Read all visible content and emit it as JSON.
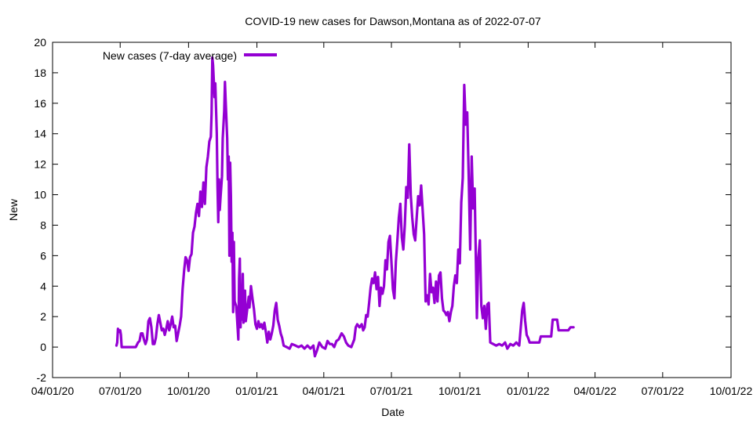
{
  "chart_data": {
    "type": "line",
    "title": "COVID-19 new cases for Dawson,Montana as of 2022-07-07",
    "xlabel": "Date",
    "ylabel": "New",
    "ylim": [
      -2,
      20
    ],
    "xlim": [
      "2020-04-01",
      "2022-10-01"
    ],
    "yticks": [
      -2,
      0,
      2,
      4,
      6,
      8,
      10,
      12,
      14,
      16,
      18,
      20
    ],
    "xticks": [
      {
        "date": "2020-04-01",
        "label": "04/01/20"
      },
      {
        "date": "2020-07-01",
        "label": "07/01/20"
      },
      {
        "date": "2020-10-01",
        "label": "10/01/20"
      },
      {
        "date": "2021-01-01",
        "label": "01/01/21"
      },
      {
        "date": "2021-04-01",
        "label": "04/01/21"
      },
      {
        "date": "2021-07-01",
        "label": "07/01/21"
      },
      {
        "date": "2021-10-01",
        "label": "10/01/21"
      },
      {
        "date": "2022-01-01",
        "label": "01/01/22"
      },
      {
        "date": "2022-04-01",
        "label": "04/01/22"
      },
      {
        "date": "2022-07-01",
        "label": "07/01/22"
      },
      {
        "date": "2022-10-01",
        "label": "10/01/22"
      }
    ],
    "grid": false,
    "legend_position": "top-left",
    "series": [
      {
        "name": "New cases (7-day average)",
        "color": "#9400d3",
        "points": [
          [
            "2020-06-26",
            0.1
          ],
          [
            "2020-06-27",
            0.3
          ],
          [
            "2020-06-28",
            1.2
          ],
          [
            "2020-06-30",
            1.0
          ],
          [
            "2020-07-01",
            1.1
          ],
          [
            "2020-07-02",
            0.8
          ],
          [
            "2020-07-03",
            0.0
          ],
          [
            "2020-07-05",
            0.0
          ],
          [
            "2020-07-15",
            0.0
          ],
          [
            "2020-07-22",
            0.0
          ],
          [
            "2020-07-25",
            0.3
          ],
          [
            "2020-07-27",
            0.4
          ],
          [
            "2020-07-29",
            0.9
          ],
          [
            "2020-07-31",
            0.9
          ],
          [
            "2020-08-02",
            0.5
          ],
          [
            "2020-08-04",
            0.2
          ],
          [
            "2020-08-06",
            0.5
          ],
          [
            "2020-08-08",
            1.7
          ],
          [
            "2020-08-10",
            1.9
          ],
          [
            "2020-08-12",
            1.3
          ],
          [
            "2020-08-14",
            0.2
          ],
          [
            "2020-08-16",
            0.2
          ],
          [
            "2020-08-18",
            0.6
          ],
          [
            "2020-08-20",
            1.5
          ],
          [
            "2020-08-22",
            2.1
          ],
          [
            "2020-08-24",
            1.6
          ],
          [
            "2020-08-26",
            1.1
          ],
          [
            "2020-08-28",
            1.2
          ],
          [
            "2020-08-30",
            0.8
          ],
          [
            "2020-09-01",
            1.2
          ],
          [
            "2020-09-03",
            1.7
          ],
          [
            "2020-09-05",
            1.1
          ],
          [
            "2020-09-07",
            1.5
          ],
          [
            "2020-09-09",
            2.0
          ],
          [
            "2020-09-11",
            1.3
          ],
          [
            "2020-09-13",
            1.4
          ],
          [
            "2020-09-15",
            0.4
          ],
          [
            "2020-09-17",
            0.9
          ],
          [
            "2020-09-19",
            1.4
          ],
          [
            "2020-09-21",
            2.0
          ],
          [
            "2020-09-23",
            3.8
          ],
          [
            "2020-09-25",
            5.0
          ],
          [
            "2020-09-27",
            5.9
          ],
          [
            "2020-09-29",
            5.7
          ],
          [
            "2020-10-01",
            5.0
          ],
          [
            "2020-10-03",
            5.9
          ],
          [
            "2020-10-05",
            6.1
          ],
          [
            "2020-10-07",
            7.5
          ],
          [
            "2020-10-09",
            7.9
          ],
          [
            "2020-10-11",
            8.8
          ],
          [
            "2020-10-13",
            9.4
          ],
          [
            "2020-10-15",
            8.6
          ],
          [
            "2020-10-17",
            10.2
          ],
          [
            "2020-10-19",
            9.2
          ],
          [
            "2020-10-21",
            10.8
          ],
          [
            "2020-10-23",
            9.4
          ],
          [
            "2020-10-25",
            11.8
          ],
          [
            "2020-10-27",
            12.5
          ],
          [
            "2020-10-29",
            13.5
          ],
          [
            "2020-10-31",
            13.8
          ],
          [
            "2020-11-01",
            15.3
          ],
          [
            "2020-11-02",
            19.0
          ],
          [
            "2020-11-03",
            18.5
          ],
          [
            "2020-11-05",
            16.4
          ],
          [
            "2020-11-06",
            17.3
          ],
          [
            "2020-11-08",
            14.0
          ],
          [
            "2020-11-09",
            10.5
          ],
          [
            "2020-11-10",
            8.2
          ],
          [
            "2020-11-11",
            11.0
          ],
          [
            "2020-11-12",
            9.0
          ],
          [
            "2020-11-13",
            9.8
          ],
          [
            "2020-11-15",
            11.2
          ],
          [
            "2020-11-16",
            13.7
          ],
          [
            "2020-11-18",
            15.5
          ],
          [
            "2020-11-19",
            17.4
          ],
          [
            "2020-11-20",
            16.1
          ],
          [
            "2020-11-22",
            13.7
          ],
          [
            "2020-11-23",
            11.0
          ],
          [
            "2020-11-24",
            12.5
          ],
          [
            "2020-11-25",
            6.0
          ],
          [
            "2020-11-26",
            12.1
          ],
          [
            "2020-11-27",
            9.9
          ],
          [
            "2020-11-28",
            5.6
          ],
          [
            "2020-11-29",
            7.5
          ],
          [
            "2020-11-30",
            2.3
          ],
          [
            "2020-12-01",
            6.9
          ],
          [
            "2020-12-02",
            3.0
          ],
          [
            "2020-12-04",
            2.7
          ],
          [
            "2020-12-05",
            2.1
          ],
          [
            "2020-12-07",
            0.5
          ],
          [
            "2020-12-08",
            4.5
          ],
          [
            "2020-12-09",
            5.8
          ],
          [
            "2020-12-10",
            1.3
          ],
          [
            "2020-12-11",
            3.9
          ],
          [
            "2020-12-12",
            1.8
          ],
          [
            "2020-12-13",
            4.8
          ],
          [
            "2020-12-14",
            1.6
          ],
          [
            "2020-12-15",
            2.4
          ],
          [
            "2020-12-16",
            3.7
          ],
          [
            "2020-12-17",
            1.7
          ],
          [
            "2020-12-19",
            2.5
          ],
          [
            "2020-12-21",
            3.3
          ],
          [
            "2020-12-22",
            2.6
          ],
          [
            "2020-12-24",
            4.0
          ],
          [
            "2020-12-26",
            3.2
          ],
          [
            "2020-12-28",
            2.5
          ],
          [
            "2020-12-30",
            1.5
          ],
          [
            "2021-01-01",
            1.2
          ],
          [
            "2021-01-03",
            1.7
          ],
          [
            "2021-01-05",
            1.3
          ],
          [
            "2021-01-07",
            1.5
          ],
          [
            "2021-01-09",
            1.2
          ],
          [
            "2021-01-11",
            1.6
          ],
          [
            "2021-01-13",
            1.0
          ],
          [
            "2021-01-15",
            0.3
          ],
          [
            "2021-01-17",
            1.0
          ],
          [
            "2021-01-19",
            0.5
          ],
          [
            "2021-01-21",
            0.9
          ],
          [
            "2021-01-23",
            1.4
          ],
          [
            "2021-01-25",
            2.4
          ],
          [
            "2021-01-27",
            2.9
          ],
          [
            "2021-01-29",
            1.8
          ],
          [
            "2021-01-31",
            1.4
          ],
          [
            "2021-02-02",
            0.9
          ],
          [
            "2021-02-04",
            0.6
          ],
          [
            "2021-02-06",
            0.1
          ],
          [
            "2021-02-10",
            0.0
          ],
          [
            "2021-02-14",
            -0.1
          ],
          [
            "2021-02-17",
            0.2
          ],
          [
            "2021-02-22",
            0.1
          ],
          [
            "2021-02-26",
            0.0
          ],
          [
            "2021-03-02",
            0.1
          ],
          [
            "2021-03-06",
            -0.1
          ],
          [
            "2021-03-10",
            0.1
          ],
          [
            "2021-03-14",
            -0.1
          ],
          [
            "2021-03-18",
            0.1
          ],
          [
            "2021-03-20",
            -0.6
          ],
          [
            "2021-03-23",
            -0.2
          ],
          [
            "2021-03-26",
            0.3
          ],
          [
            "2021-03-30",
            0.0
          ],
          [
            "2021-04-03",
            -0.1
          ],
          [
            "2021-04-06",
            0.4
          ],
          [
            "2021-04-09",
            0.2
          ],
          [
            "2021-04-12",
            0.2
          ],
          [
            "2021-04-15",
            0.0
          ],
          [
            "2021-04-18",
            0.4
          ],
          [
            "2021-04-21",
            0.5
          ],
          [
            "2021-04-25",
            0.9
          ],
          [
            "2021-04-28",
            0.7
          ],
          [
            "2021-05-01",
            0.3
          ],
          [
            "2021-05-04",
            0.1
          ],
          [
            "2021-05-08",
            0.0
          ],
          [
            "2021-05-12",
            0.5
          ],
          [
            "2021-05-14",
            1.3
          ],
          [
            "2021-05-16",
            1.5
          ],
          [
            "2021-05-19",
            1.3
          ],
          [
            "2021-05-22",
            1.5
          ],
          [
            "2021-05-24",
            1.1
          ],
          [
            "2021-05-26",
            1.3
          ],
          [
            "2021-05-28",
            2.1
          ],
          [
            "2021-05-30",
            2.0
          ],
          [
            "2021-06-01",
            2.9
          ],
          [
            "2021-06-03",
            3.9
          ],
          [
            "2021-06-05",
            4.5
          ],
          [
            "2021-06-07",
            4.2
          ],
          [
            "2021-06-09",
            4.9
          ],
          [
            "2021-06-11",
            3.8
          ],
          [
            "2021-06-13",
            4.6
          ],
          [
            "2021-06-15",
            2.7
          ],
          [
            "2021-06-17",
            3.9
          ],
          [
            "2021-06-19",
            3.5
          ],
          [
            "2021-06-21",
            4.0
          ],
          [
            "2021-06-23",
            5.7
          ],
          [
            "2021-06-25",
            5.1
          ],
          [
            "2021-06-27",
            6.9
          ],
          [
            "2021-06-29",
            7.3
          ],
          [
            "2021-07-01",
            5.6
          ],
          [
            "2021-07-03",
            3.8
          ],
          [
            "2021-07-05",
            3.2
          ],
          [
            "2021-07-07",
            5.6
          ],
          [
            "2021-07-09",
            7.0
          ],
          [
            "2021-07-11",
            8.5
          ],
          [
            "2021-07-13",
            9.4
          ],
          [
            "2021-07-15",
            7.2
          ],
          [
            "2021-07-17",
            6.4
          ],
          [
            "2021-07-19",
            8.0
          ],
          [
            "2021-07-21",
            10.5
          ],
          [
            "2021-07-23",
            9.8
          ],
          [
            "2021-07-25",
            13.3
          ],
          [
            "2021-07-27",
            10.0
          ],
          [
            "2021-07-29",
            8.5
          ],
          [
            "2021-07-31",
            7.4
          ],
          [
            "2021-08-02",
            7.0
          ],
          [
            "2021-08-04",
            8.5
          ],
          [
            "2021-08-06",
            9.9
          ],
          [
            "2021-08-08",
            9.3
          ],
          [
            "2021-08-10",
            10.6
          ],
          [
            "2021-08-12",
            9.0
          ],
          [
            "2021-08-14",
            7.4
          ],
          [
            "2021-08-16",
            3.0
          ],
          [
            "2021-08-18",
            3.4
          ],
          [
            "2021-08-20",
            2.8
          ],
          [
            "2021-08-22",
            4.8
          ],
          [
            "2021-08-24",
            3.6
          ],
          [
            "2021-08-26",
            3.9
          ],
          [
            "2021-08-28",
            2.9
          ],
          [
            "2021-08-30",
            4.3
          ],
          [
            "2021-09-01",
            3.0
          ],
          [
            "2021-09-03",
            4.7
          ],
          [
            "2021-09-05",
            4.9
          ],
          [
            "2021-09-07",
            3.2
          ],
          [
            "2021-09-09",
            2.4
          ],
          [
            "2021-09-11",
            2.3
          ],
          [
            "2021-09-13",
            2.1
          ],
          [
            "2021-09-15",
            2.3
          ],
          [
            "2021-09-17",
            1.7
          ],
          [
            "2021-09-19",
            2.3
          ],
          [
            "2021-09-21",
            2.7
          ],
          [
            "2021-09-23",
            4.0
          ],
          [
            "2021-09-25",
            4.7
          ],
          [
            "2021-09-27",
            4.2
          ],
          [
            "2021-09-29",
            6.4
          ],
          [
            "2021-10-01",
            5.5
          ],
          [
            "2021-10-03",
            9.5
          ],
          [
            "2021-10-05",
            11.1
          ],
          [
            "2021-10-07",
            17.2
          ],
          [
            "2021-10-09",
            14.6
          ],
          [
            "2021-10-11",
            15.4
          ],
          [
            "2021-10-13",
            11.2
          ],
          [
            "2021-10-15",
            6.4
          ],
          [
            "2021-10-17",
            12.5
          ],
          [
            "2021-10-19",
            9.1
          ],
          [
            "2021-10-21",
            10.4
          ],
          [
            "2021-10-23",
            4.7
          ],
          [
            "2021-10-24",
            1.9
          ],
          [
            "2021-10-26",
            5.9
          ],
          [
            "2021-10-28",
            7.0
          ],
          [
            "2021-10-30",
            2.7
          ],
          [
            "2021-11-01",
            1.9
          ],
          [
            "2021-11-03",
            2.7
          ],
          [
            "2021-11-05",
            1.2
          ],
          [
            "2021-11-07",
            2.8
          ],
          [
            "2021-11-09",
            2.9
          ],
          [
            "2021-11-11",
            0.3
          ],
          [
            "2021-11-15",
            0.2
          ],
          [
            "2021-11-19",
            0.1
          ],
          [
            "2021-11-23",
            0.2
          ],
          [
            "2021-11-27",
            0.1
          ],
          [
            "2021-12-01",
            0.3
          ],
          [
            "2021-12-04",
            -0.1
          ],
          [
            "2021-12-08",
            0.2
          ],
          [
            "2021-12-12",
            0.1
          ],
          [
            "2021-12-16",
            0.3
          ],
          [
            "2021-12-20",
            0.1
          ],
          [
            "2021-12-24",
            2.4
          ],
          [
            "2021-12-26",
            2.9
          ],
          [
            "2021-12-28",
            1.7
          ],
          [
            "2021-12-30",
            0.8
          ],
          [
            "2022-01-01",
            0.6
          ],
          [
            "2022-01-03",
            0.3
          ],
          [
            "2022-01-07",
            0.3
          ],
          [
            "2022-01-12",
            0.3
          ],
          [
            "2022-01-16",
            0.3
          ],
          [
            "2022-01-18",
            0.7
          ],
          [
            "2022-01-22",
            0.7
          ],
          [
            "2022-01-28",
            0.7
          ],
          [
            "2022-02-01",
            0.7
          ],
          [
            "2022-02-03",
            1.8
          ],
          [
            "2022-02-06",
            1.8
          ],
          [
            "2022-02-09",
            1.8
          ],
          [
            "2022-02-11",
            1.1
          ],
          [
            "2022-02-15",
            1.1
          ],
          [
            "2022-02-20",
            1.1
          ],
          [
            "2022-02-24",
            1.1
          ],
          [
            "2022-02-27",
            1.3
          ],
          [
            "2022-03-03",
            1.3
          ]
        ]
      }
    ]
  }
}
